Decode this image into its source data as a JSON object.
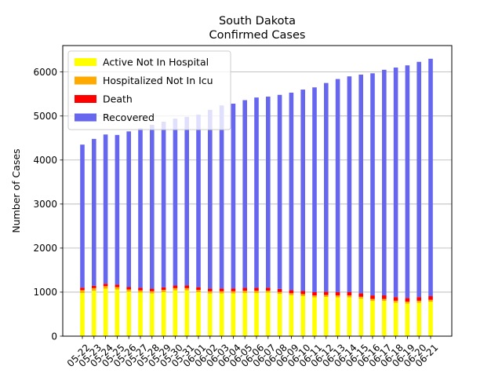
{
  "chart_data": {
    "type": "bar",
    "stacked": true,
    "title": "South Dakota",
    "subtitle": "Confirmed Cases",
    "xlabel": "",
    "ylabel": "Number of Cases",
    "ylim": [
      0,
      6600
    ],
    "yticks": [
      0,
      1000,
      2000,
      3000,
      4000,
      5000,
      6000
    ],
    "grid": "horizontal",
    "legend_position": "top-left",
    "categories": [
      "05-22",
      "05-23",
      "05-24",
      "05-25",
      "05-26",
      "05-27",
      "05-28",
      "05-29",
      "05-30",
      "05-31",
      "06-01",
      "06-02",
      "06-03",
      "06-04",
      "06-05",
      "06-06",
      "06-07",
      "06-08",
      "06-09",
      "06-10",
      "06-11",
      "06-12",
      "06-13",
      "06-14",
      "06-15",
      "06-16",
      "06-17",
      "06-18",
      "06-19",
      "06-20",
      "06-21"
    ],
    "series": [
      {
        "name": "Active Not In Hospital",
        "color": "#ffff00",
        "values": [
          980,
          1030,
          1080,
          1060,
          1010,
          990,
          970,
          1000,
          1040,
          1040,
          1000,
          970,
          970,
          970,
          980,
          980,
          990,
          960,
          930,
          910,
          880,
          890,
          880,
          880,
          850,
          800,
          800,
          760,
          740,
          760,
          780
        ]
      },
      {
        "name": "Hospitalized Not In Icu",
        "color": "#ffaa00",
        "values": [
          65,
          60,
          55,
          55,
          50,
          50,
          50,
          50,
          50,
          50,
          50,
          50,
          50,
          50,
          50,
          50,
          45,
          45,
          45,
          45,
          45,
          45,
          45,
          45,
          45,
          45,
          45,
          45,
          45,
          45,
          45
        ]
      },
      {
        "name": "Death",
        "color": "#ff0000",
        "values": [
          55,
          55,
          55,
          55,
          55,
          56,
          58,
          60,
          60,
          62,
          62,
          62,
          64,
          65,
          66,
          66,
          66,
          68,
          70,
          72,
          74,
          75,
          77,
          79,
          80,
          81,
          82,
          82,
          83,
          83,
          84
        ]
      },
      {
        "name": "Recovered",
        "color": "#6666ee",
        "values": [
          3250,
          3335,
          3390,
          3400,
          3535,
          3624,
          3722,
          3760,
          3790,
          3828,
          3918,
          4058,
          4156,
          4195,
          4264,
          4324,
          4339,
          4407,
          4485,
          4573,
          4651,
          4740,
          4838,
          4896,
          4965,
          5044,
          5123,
          5213,
          5282,
          5342,
          5391
        ]
      }
    ]
  }
}
